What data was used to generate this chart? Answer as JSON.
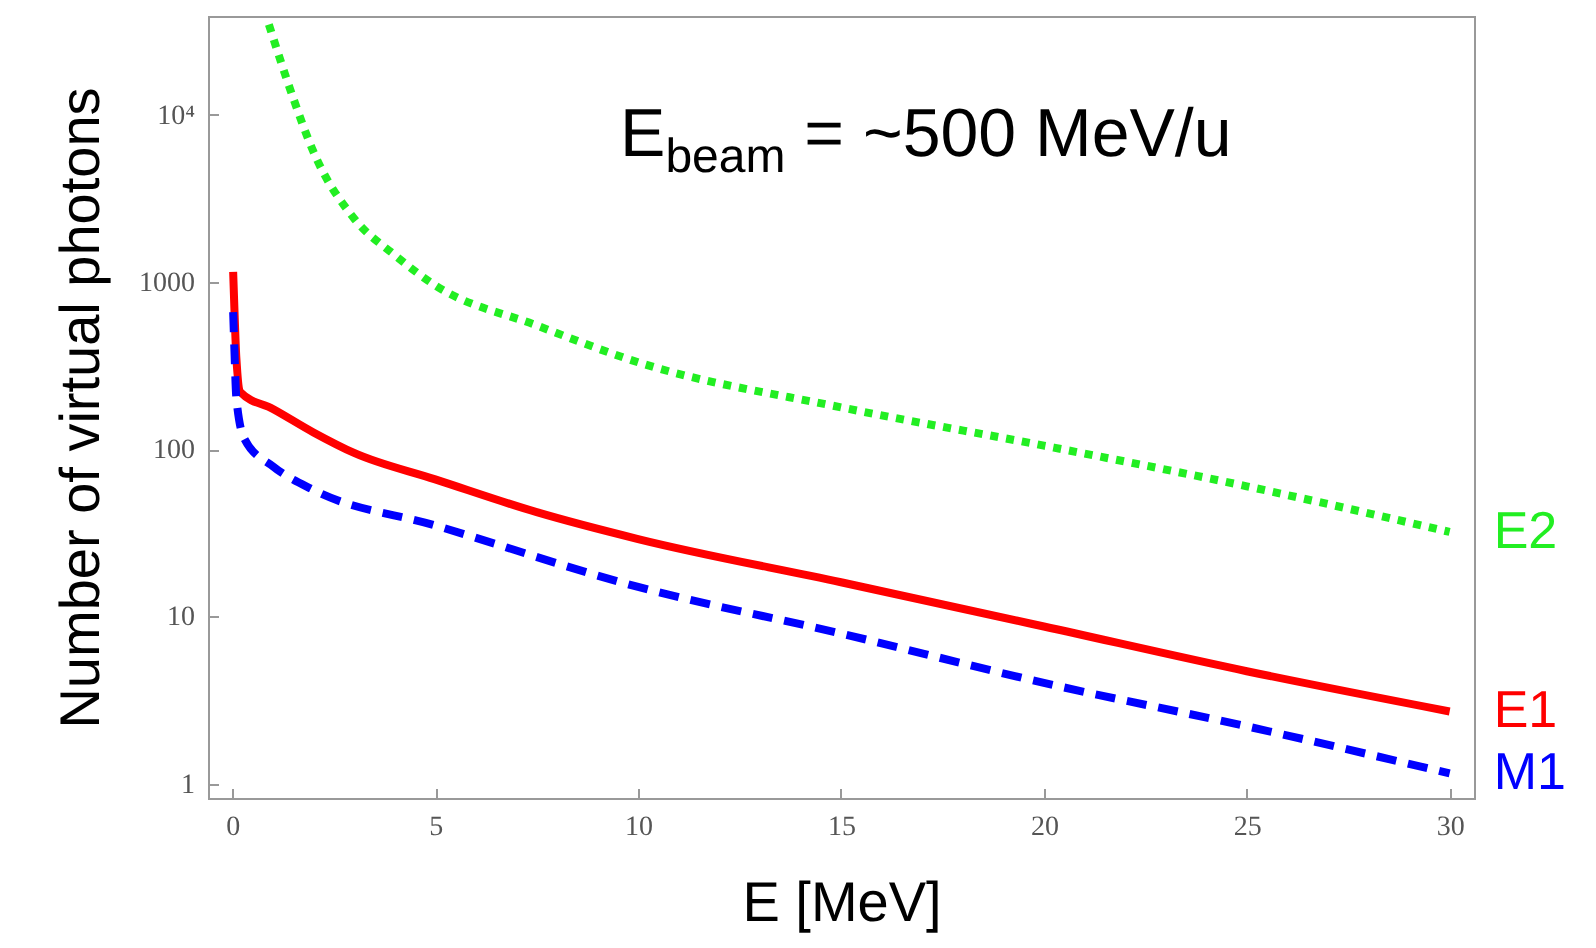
{
  "chart_data": {
    "type": "line",
    "xlabel": "E [MeV]",
    "ylabel": "Number of virtual photons",
    "annotations": [
      "E$_{beam}$ = ~500 MeV/u"
    ],
    "log": "y",
    "grid": false,
    "legend": false,
    "marker": "none",
    "xlim": [
      -0.6,
      30.6
    ],
    "xticks": [
      0,
      5,
      10,
      15,
      20,
      25,
      30
    ],
    "ylim": [
      0.82,
      39000
    ],
    "yticks": [
      1,
      10,
      100,
      1000,
      {
        "value": 10000,
        "label": "10⁴"
      }
    ],
    "series": [
      {
        "name": "E2",
        "color": "#22ee22",
        "line_style": "dotted",
        "x": [
          0.9,
          1.5,
          2,
          3,
          4,
          5,
          7.5,
          10,
          15,
          20,
          25,
          30
        ],
        "values": [
          34700,
          12600,
          6000,
          2400,
          1450,
          955,
          550,
          331,
          178,
          105,
          60,
          32
        ]
      },
      {
        "name": "E1",
        "color": "#ff0000",
        "line_style": "solid",
        "x": [
          0.02,
          0.05,
          0.1,
          0.2,
          1,
          2,
          3,
          5,
          7.5,
          10,
          15,
          20,
          25,
          30
        ],
        "values": [
          1150,
          700,
          347,
          219,
          174,
          126,
          95,
          66,
          42,
          29,
          16,
          8.7,
          4.7,
          2.7
        ]
      },
      {
        "name": "M1",
        "color": "#0000ff",
        "line_style": "dashed",
        "x": [
          0.02,
          0.05,
          0.1,
          0.3,
          1,
          2,
          5,
          10,
          15,
          20,
          25,
          30
        ],
        "values": [
          660,
          400,
          200,
          115,
          79,
          57,
          35,
          15,
          7.9,
          4.0,
          2.2,
          1.15
        ]
      }
    ]
  }
}
